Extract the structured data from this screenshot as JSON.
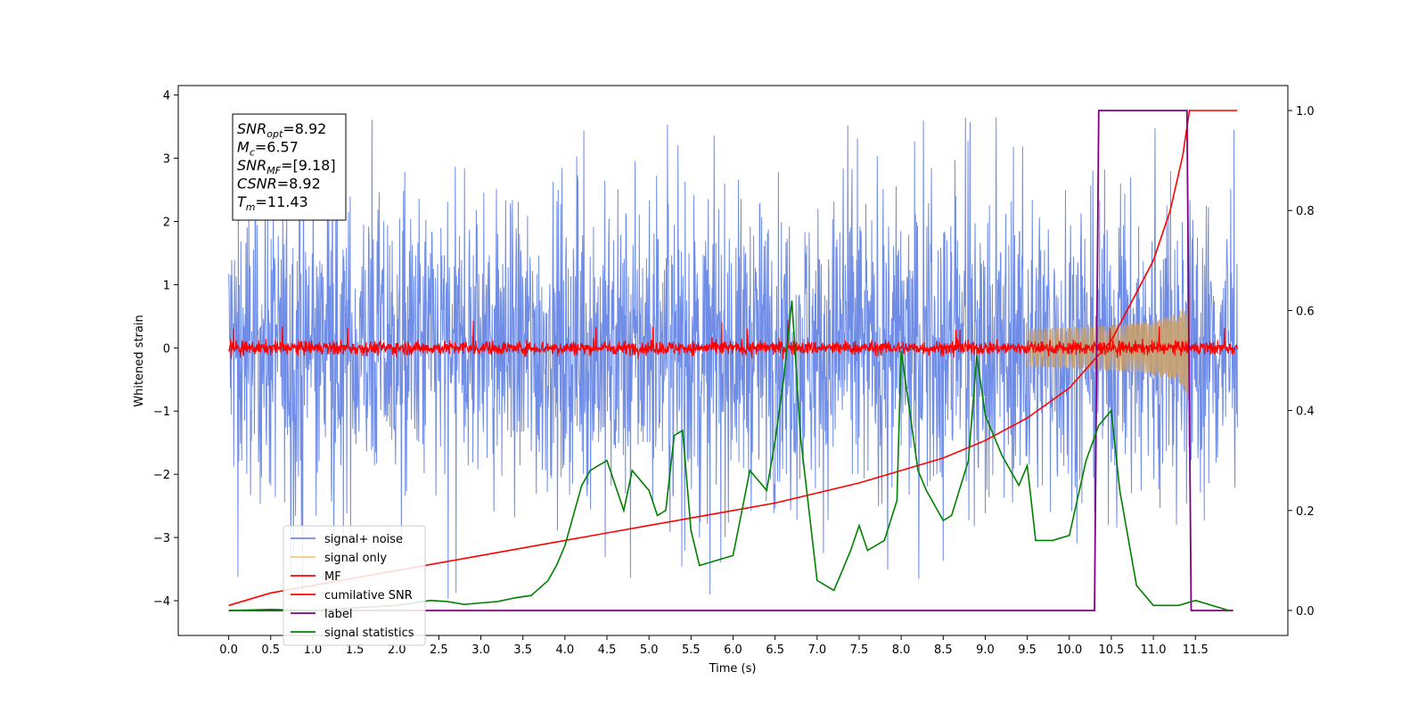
{
  "chart_data": {
    "type": "line",
    "xlabel": "Time (s)",
    "ylabel": "Whitened strain",
    "xlim": [
      -0.6,
      12.6
    ],
    "ylim": [
      -4.55,
      4.15
    ],
    "y2lim": [
      -0.05,
      1.05
    ],
    "xticks": [
      "0.0",
      "0.5",
      "1.0",
      "1.5",
      "2.0",
      "2.5",
      "3.0",
      "3.5",
      "4.0",
      "4.5",
      "5.0",
      "5.5",
      "6.0",
      "6.5",
      "7.0",
      "7.5",
      "8.0",
      "8.5",
      "9.0",
      "9.5",
      "10.0",
      "10.5",
      "11.0",
      "11.5"
    ],
    "yticks": [
      "−4",
      "−3",
      "−2",
      "−1",
      "0",
      "1",
      "2",
      "3",
      "4"
    ],
    "y2ticks": [
      "0.0",
      "0.2",
      "0.4",
      "0.6",
      "0.8",
      "1.0"
    ],
    "annotation": {
      "lines": [
        {
          "sym": "SNR",
          "sub": "opt",
          "val": "=8.92"
        },
        {
          "sym": "M",
          "sub": "c",
          "val": "=6.57"
        },
        {
          "sym": "SNR",
          "sub": "MF",
          "val": "=[9.18]"
        },
        {
          "sym": "CSNR",
          "sub": "",
          "val": "=8.92"
        },
        {
          "sym": "T",
          "sub": "m",
          "val": "=11.43"
        }
      ]
    },
    "legend": {
      "position": "lower-left",
      "entries": [
        "signal+ noise",
        "signal only",
        "MF",
        "cumilative SNR",
        "label",
        "signal statistics"
      ]
    },
    "series": [
      {
        "name": "signal+ noise",
        "axis": "left",
        "color": "#6f8ce6",
        "kind": "noise",
        "x_range": [
          0,
          12
        ],
        "band": [
          -2.1,
          2.1
        ],
        "peak_max": 3.7,
        "peak_min": -4.1
      },
      {
        "name": "signal only",
        "axis": "left",
        "color": "#f3c97a",
        "kind": "chirp",
        "x_range": [
          9.5,
          11.43
        ],
        "amplitude_end": 0.95
      },
      {
        "name": "MF",
        "axis": "left",
        "color": "#ff0000",
        "kind": "noise",
        "x_range": [
          0,
          12
        ],
        "band": [
          -0.1,
          0.1
        ],
        "peak_max": 0.45,
        "peak_min": -0.2
      },
      {
        "name": "cumilative SNR",
        "axis": "right",
        "x": [
          0.0,
          0.5,
          1.0,
          1.5,
          2.0,
          2.5,
          3.0,
          3.5,
          4.0,
          4.5,
          5.0,
          5.5,
          6.0,
          6.5,
          7.0,
          7.5,
          8.0,
          8.5,
          9.0,
          9.5,
          10.0,
          10.5,
          11.0,
          11.2,
          11.35,
          11.43,
          12.0
        ],
        "y": [
          0.01,
          0.035,
          0.05,
          0.065,
          0.08,
          0.095,
          0.11,
          0.125,
          0.14,
          0.155,
          0.17,
          0.185,
          0.2,
          0.215,
          0.235,
          0.255,
          0.28,
          0.305,
          0.34,
          0.385,
          0.445,
          0.54,
          0.7,
          0.8,
          0.91,
          1.0,
          1.0
        ],
        "color": "#ff0000"
      },
      {
        "name": "label",
        "axis": "right",
        "x": [
          0.0,
          10.3,
          10.35,
          11.4,
          11.45,
          11.95
        ],
        "y": [
          0.0,
          0.0,
          1.0,
          1.0,
          0.0,
          0.0
        ],
        "color": "#800080"
      },
      {
        "name": "signal statistics",
        "axis": "right",
        "x": [
          0.0,
          0.5,
          1.0,
          1.5,
          2.0,
          2.2,
          2.4,
          2.6,
          2.8,
          3.0,
          3.2,
          3.4,
          3.6,
          3.8,
          3.9,
          4.0,
          4.2,
          4.3,
          4.5,
          4.7,
          4.8,
          5.0,
          5.1,
          5.2,
          5.3,
          5.4,
          5.5,
          5.6,
          5.8,
          6.0,
          6.2,
          6.4,
          6.5,
          6.6,
          6.7,
          6.8,
          7.0,
          7.2,
          7.4,
          7.5,
          7.6,
          7.8,
          7.95,
          8.0,
          8.1,
          8.2,
          8.3,
          8.5,
          8.6,
          8.8,
          8.9,
          9.0,
          9.2,
          9.4,
          9.5,
          9.6,
          9.8,
          10.0,
          10.2,
          10.35,
          10.5,
          10.6,
          10.8,
          11.0,
          11.3,
          11.5,
          11.9
        ],
        "y": [
          0.0,
          0.002,
          0.0,
          0.005,
          0.01,
          0.015,
          0.02,
          0.018,
          0.012,
          0.015,
          0.018,
          0.025,
          0.03,
          0.06,
          0.09,
          0.13,
          0.25,
          0.28,
          0.3,
          0.2,
          0.28,
          0.24,
          0.19,
          0.2,
          0.35,
          0.36,
          0.16,
          0.09,
          0.1,
          0.11,
          0.28,
          0.24,
          0.34,
          0.46,
          0.62,
          0.35,
          0.06,
          0.04,
          0.12,
          0.17,
          0.12,
          0.14,
          0.22,
          0.52,
          0.4,
          0.28,
          0.24,
          0.18,
          0.19,
          0.3,
          0.51,
          0.39,
          0.31,
          0.25,
          0.29,
          0.14,
          0.14,
          0.15,
          0.3,
          0.37,
          0.4,
          0.24,
          0.05,
          0.01,
          0.01,
          0.02,
          0.0
        ],
        "color": "#008000"
      }
    ]
  }
}
